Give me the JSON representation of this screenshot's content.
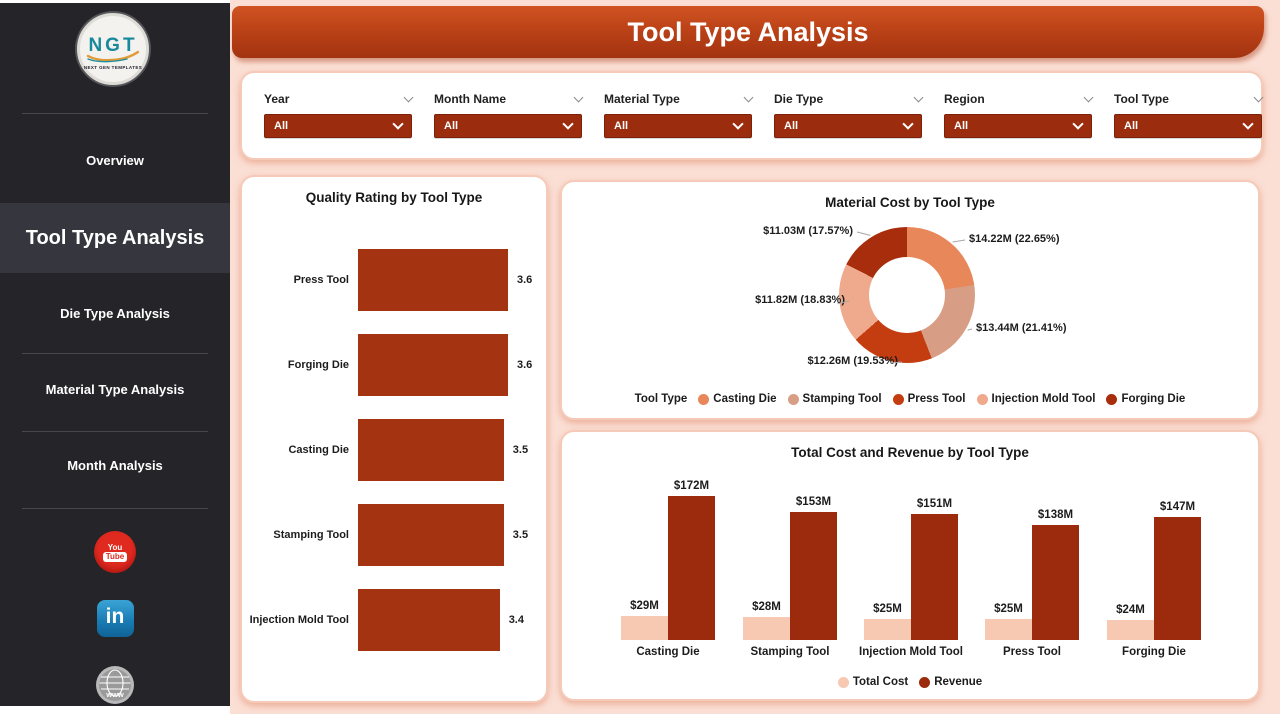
{
  "header": {
    "title": "Tool Type Analysis"
  },
  "sidebar": {
    "logo": {
      "text": "NGT",
      "subtext": "NEXT GEN TEMPLATES"
    },
    "items": [
      {
        "label": "Overview",
        "active": false
      },
      {
        "label": "Tool Type Analysis",
        "active": true
      },
      {
        "label": "Die Type Analysis",
        "active": false
      },
      {
        "label": "Material Type Analysis",
        "active": false
      },
      {
        "label": "Month Analysis",
        "active": false
      }
    ],
    "social": {
      "youtube_line1": "You",
      "youtube_line2": "Tube",
      "linkedin_text": "in",
      "website_text": "www"
    }
  },
  "filters": [
    {
      "label": "Year",
      "value": "All"
    },
    {
      "label": "Month Name",
      "value": "All"
    },
    {
      "label": "Material Type",
      "value": "All"
    },
    {
      "label": "Die Type",
      "value": "All"
    },
    {
      "label": "Region",
      "value": "All"
    },
    {
      "label": "Tool Type",
      "value": "All"
    }
  ],
  "colors": {
    "primary_red": "#9c2c0e",
    "pale_peach": "#f7c8b2",
    "page_bg": "#fbdfd4",
    "sidebar_bg": "#242429"
  },
  "chart_data": [
    {
      "type": "bar",
      "orientation": "horizontal",
      "title": "Quality Rating by Tool Type",
      "categories": [
        "Press Tool",
        "Forging Die",
        "Casting Die",
        "Stamping Tool",
        "Injection Mold Tool"
      ],
      "values": [
        3.6,
        3.6,
        3.5,
        3.5,
        3.4
      ],
      "value_labels": [
        "3.6",
        "3.6",
        "3.5",
        "3.5",
        "3.4"
      ],
      "xlim": [
        0,
        3.6
      ],
      "bar_color": "#a43411",
      "grid": false
    },
    {
      "type": "pie",
      "subtype": "donut",
      "title": "Material Cost by Tool Type",
      "legend_title": "Tool Type",
      "legend_position": "bottom",
      "slices": [
        {
          "name": "Casting Die",
          "value_m": 14.22,
          "pct": 22.65,
          "label": "$14.22M (22.65%)",
          "color": "#e8875a"
        },
        {
          "name": "Stamping Tool",
          "value_m": 13.44,
          "pct": 21.41,
          "label": "$13.44M (21.41%)",
          "color": "#d89e85"
        },
        {
          "name": "Press Tool",
          "value_m": 12.26,
          "pct": 19.53,
          "label": "$12.26M (19.53%)",
          "color": "#c33d10"
        },
        {
          "name": "Injection Mold Tool",
          "value_m": 11.82,
          "pct": 18.83,
          "label": "$11.82M (18.83%)",
          "color": "#efa98c"
        },
        {
          "name": "Forging Die",
          "value_m": 11.03,
          "pct": 17.57,
          "label": "$11.03M (17.57%)",
          "color": "#a82d0c"
        }
      ]
    },
    {
      "type": "bar",
      "orientation": "vertical",
      "title": "Total Cost and Revenue by Tool Type",
      "categories": [
        "Casting Die",
        "Stamping Tool",
        "Injection Mold Tool",
        "Press Tool",
        "Forging Die"
      ],
      "series": [
        {
          "name": "Total Cost",
          "color": "#f7c8b2",
          "values": [
            29,
            28,
            25,
            25,
            24
          ],
          "labels": [
            "$29M",
            "$28M",
            "$25M",
            "$25M",
            "$24M"
          ]
        },
        {
          "name": "Revenue",
          "color": "#9c2b0d",
          "values": [
            172,
            153,
            151,
            138,
            147
          ],
          "labels": [
            "$172M",
            "$153M",
            "$151M",
            "$138M",
            "$147M"
          ]
        }
      ],
      "ylim": [
        0,
        172
      ],
      "legend_position": "bottom",
      "grid": false
    }
  ]
}
